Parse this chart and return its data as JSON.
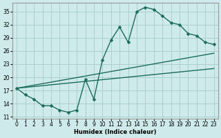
{
  "xlabel": "Humidex (Indice chaleur)",
  "bg_color": "#ceeaea",
  "grid_color": "#aacfcf",
  "line_color": "#1a6b5a",
  "markersize": 2.5,
  "linewidth": 1.0,
  "xlim": [
    -0.5,
    23.5
  ],
  "ylim": [
    10.5,
    37
  ],
  "xticks": [
    0,
    1,
    2,
    3,
    4,
    5,
    6,
    7,
    8,
    9,
    10,
    11,
    12,
    13,
    14,
    15,
    16,
    17,
    18,
    19,
    20,
    21,
    22,
    23
  ],
  "yticks": [
    11,
    14,
    17,
    20,
    23,
    26,
    29,
    32,
    35
  ],
  "line1_x": [
    0,
    1,
    2,
    3,
    4,
    5,
    6,
    7,
    8,
    9,
    10,
    11,
    12,
    13,
    14,
    15,
    16,
    17,
    18,
    19,
    20,
    21,
    22,
    23
  ],
  "line1_y": [
    17.5,
    16.0,
    15.0,
    13.5,
    13.5,
    12.5,
    12.0,
    12.5,
    19.5,
    15.0,
    24.0,
    28.5,
    31.5,
    28.0,
    35.0,
    36.0,
    35.5,
    34.0,
    32.5,
    32.0,
    30.0,
    29.5,
    28.0,
    27.5
  ],
  "line2_x": [
    0,
    23
  ],
  "line2_y": [
    17.5,
    25.5
  ],
  "line3_x": [
    0,
    23
  ],
  "line3_y": [
    17.5,
    22.0
  ]
}
